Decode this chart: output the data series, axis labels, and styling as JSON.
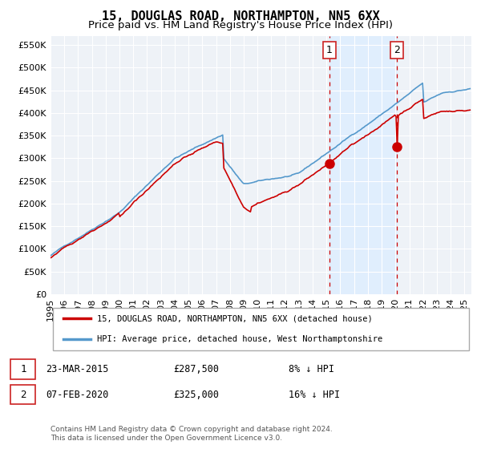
{
  "title": "15, DOUGLAS ROAD, NORTHAMPTON, NN5 6XX",
  "subtitle": "Price paid vs. HM Land Registry's House Price Index (HPI)",
  "red_label": "15, DOUGLAS ROAD, NORTHAMPTON, NN5 6XX (detached house)",
  "blue_label": "HPI: Average price, detached house, West Northamptonshire",
  "point1_date": "23-MAR-2015",
  "point1_price": 287500,
  "point1_label": "8% ↓ HPI",
  "point2_date": "07-FEB-2020",
  "point2_price": 325000,
  "point2_label": "16% ↓ HPI",
  "footnote1": "Contains HM Land Registry data © Crown copyright and database right 2024.",
  "footnote2": "This data is licensed under the Open Government Licence v3.0.",
  "xmin": 1995.0,
  "xmax": 2025.5,
  "ymin": 0,
  "ymax": 570000,
  "point1_x": 2015.22,
  "point2_x": 2020.1,
  "bg_color": "#ffffff",
  "grid_color": "#cccccc",
  "red_color": "#cc0000",
  "blue_color": "#5599cc",
  "shade_color": "#ddeeff",
  "title_fontsize": 11,
  "subtitle_fontsize": 9.5,
  "tick_fontsize": 8
}
